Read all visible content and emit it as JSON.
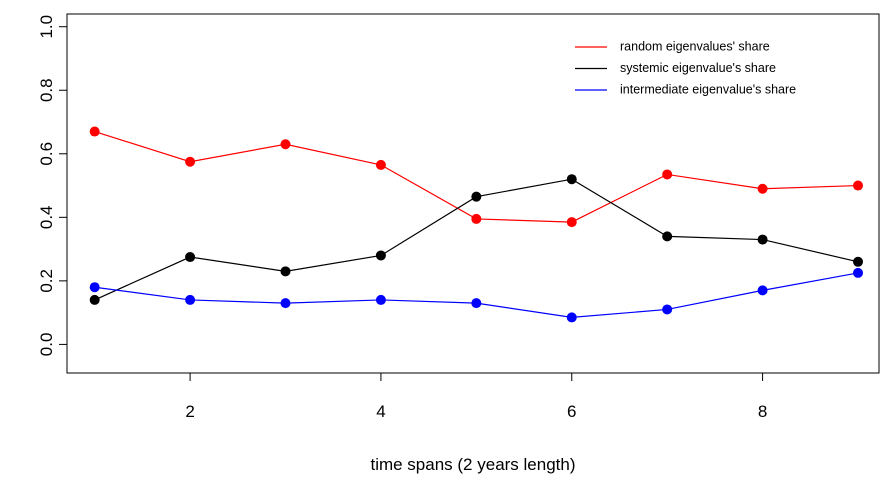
{
  "chart_data": {
    "type": "line",
    "x_label": "time spans (2 years length)",
    "x": [
      1,
      2,
      3,
      4,
      5,
      6,
      7,
      8,
      9
    ],
    "series": [
      {
        "name": "random eigenvalues' share",
        "color": "#ff0000",
        "values": [
          0.67,
          0.575,
          0.63,
          0.565,
          0.395,
          0.385,
          0.535,
          0.49,
          0.5
        ]
      },
      {
        "name": "systemic eigenvalue's share",
        "color": "#000000",
        "values": [
          0.14,
          0.275,
          0.23,
          0.28,
          0.465,
          0.52,
          0.34,
          0.33,
          0.26
        ]
      },
      {
        "name": "intermediate eigenvalue's share",
        "color": "#0000ff",
        "values": [
          0.18,
          0.14,
          0.13,
          0.14,
          0.13,
          0.085,
          0.11,
          0.17,
          0.225
        ]
      }
    ],
    "xlim": [
      0.71,
      9.22
    ],
    "ylim": [
      -0.09,
      1.04
    ],
    "xticks": [
      2,
      4,
      6,
      8
    ],
    "yticks": [
      {
        "value": 0,
        "label": "0.0"
      },
      0.2,
      0.4,
      0.6,
      0.8,
      {
        "value": 1,
        "label": "1.0"
      }
    ],
    "legend": "top-right"
  }
}
